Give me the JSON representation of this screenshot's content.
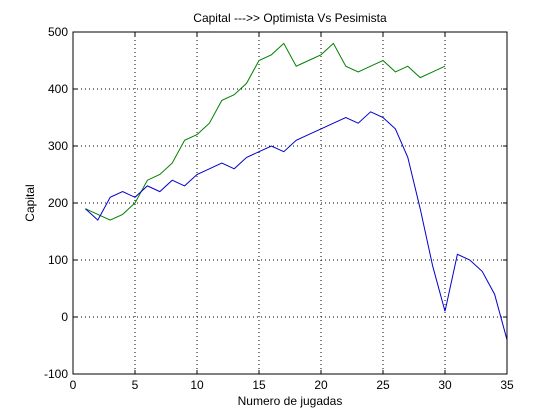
{
  "chart_data": {
    "type": "line",
    "title": "Capital --->>  Optimista Vs Pesimista",
    "xlabel": "Numero de jugadas",
    "ylabel": "Capital",
    "xlim": [
      0,
      35
    ],
    "ylim": [
      -100,
      500
    ],
    "xticks": [
      0,
      5,
      10,
      15,
      20,
      25,
      30,
      35
    ],
    "yticks": [
      -100,
      0,
      100,
      200,
      300,
      400,
      500
    ],
    "grid": true,
    "grid_style": "dotted",
    "legend": "none",
    "series": [
      {
        "color": "#008000",
        "x": [
          1,
          2,
          3,
          4,
          5,
          6,
          7,
          8,
          9,
          10,
          11,
          12,
          13,
          14,
          15,
          16,
          17,
          18,
          19,
          20,
          21,
          22,
          23,
          24,
          25,
          26,
          27,
          28,
          29,
          30
        ],
        "values": [
          190,
          180,
          170,
          180,
          200,
          240,
          250,
          270,
          310,
          320,
          340,
          380,
          390,
          410,
          450,
          460,
          480,
          440,
          450,
          460,
          480,
          440,
          430,
          440,
          450,
          430,
          440,
          420,
          430,
          440
        ]
      },
      {
        "color": "#0000cc",
        "x": [
          1,
          2,
          3,
          4,
          5,
          6,
          7,
          8,
          9,
          10,
          11,
          12,
          13,
          14,
          15,
          16,
          17,
          18,
          19,
          20,
          21,
          22,
          23,
          24,
          25,
          26,
          27,
          28,
          29,
          30,
          31,
          32,
          33,
          34,
          35
        ],
        "values": [
          190,
          170,
          210,
          220,
          210,
          230,
          220,
          240,
          230,
          250,
          260,
          270,
          260,
          280,
          290,
          300,
          290,
          310,
          320,
          330,
          340,
          350,
          340,
          360,
          350,
          330,
          280,
          190,
          90,
          10,
          110,
          100,
          80,
          40,
          -40
        ]
      }
    ]
  }
}
